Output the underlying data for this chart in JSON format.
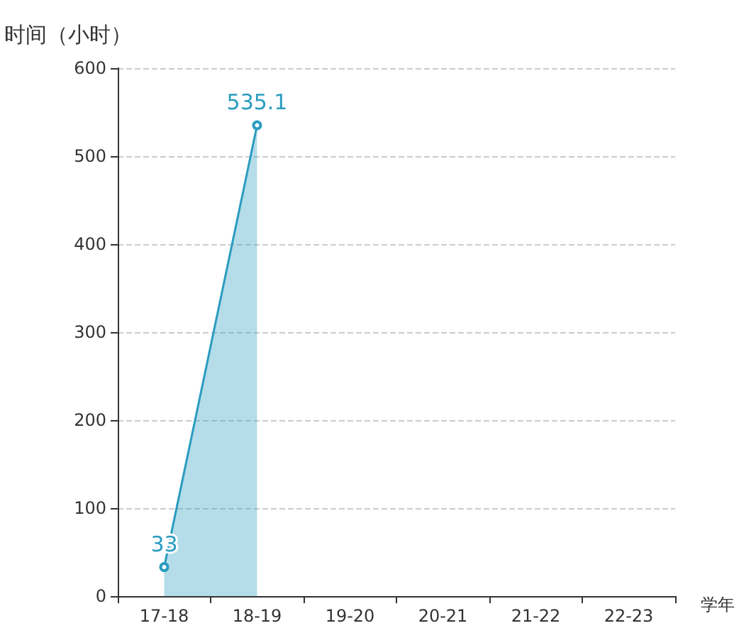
{
  "chart_data": {
    "type": "area",
    "ylabel": "时间（小时）",
    "xlabel": "学年",
    "categories": [
      "17-18",
      "18-19",
      "19-20",
      "20-21",
      "21-22",
      "22-23"
    ],
    "series": [
      {
        "color": "#2b9cc0",
        "values": [
          33,
          535.1,
          null,
          null,
          null,
          null
        ]
      }
    ],
    "ylim": [
      0,
      600
    ],
    "yticks": [
      0,
      100,
      200,
      300,
      400,
      500,
      600
    ],
    "grid": "y",
    "marker": "circle",
    "data_labels": true
  }
}
